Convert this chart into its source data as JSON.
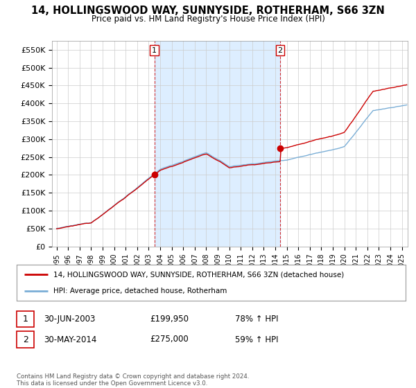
{
  "title": "14, HOLLINGSWOOD WAY, SUNNYSIDE, ROTHERHAM, S66 3ZN",
  "subtitle": "Price paid vs. HM Land Registry's House Price Index (HPI)",
  "legend_line1": "14, HOLLINGSWOOD WAY, SUNNYSIDE, ROTHERHAM, S66 3ZN (detached house)",
  "legend_line2": "HPI: Average price, detached house, Rotherham",
  "sale1_date": "30-JUN-2003",
  "sale1_price": "£199,950",
  "sale1_hpi": "78% ↑ HPI",
  "sale2_date": "30-MAY-2014",
  "sale2_price": "£275,000",
  "sale2_hpi": "59% ↑ HPI",
  "footer": "Contains HM Land Registry data © Crown copyright and database right 2024.\nThis data is licensed under the Open Government Licence v3.0.",
  "hpi_color": "#7aaed6",
  "price_color": "#cc0000",
  "marker_color": "#cc0000",
  "sale1_x": 2003.5,
  "sale1_y": 199950,
  "sale2_x": 2014.42,
  "sale2_y": 275000,
  "xlim_start": 1994.6,
  "xlim_end": 2025.5,
  "ylim_min": 0,
  "ylim_max": 575000,
  "yticks": [
    0,
    50000,
    100000,
    150000,
    200000,
    250000,
    300000,
    350000,
    400000,
    450000,
    500000,
    550000
  ],
  "ytick_labels": [
    "£0",
    "£50K",
    "£100K",
    "£150K",
    "£200K",
    "£250K",
    "£300K",
    "£350K",
    "£400K",
    "£450K",
    "£500K",
    "£550K"
  ],
  "xticks": [
    1995,
    1996,
    1997,
    1998,
    1999,
    2000,
    2001,
    2002,
    2003,
    2004,
    2005,
    2006,
    2007,
    2008,
    2009,
    2010,
    2011,
    2012,
    2013,
    2014,
    2015,
    2016,
    2017,
    2018,
    2019,
    2020,
    2021,
    2022,
    2023,
    2024,
    2025
  ],
  "vline1_x": 2003.5,
  "vline2_x": 2014.42,
  "shade_color": "#ddeeff",
  "background_color": "#ffffff",
  "grid_color": "#cccccc"
}
